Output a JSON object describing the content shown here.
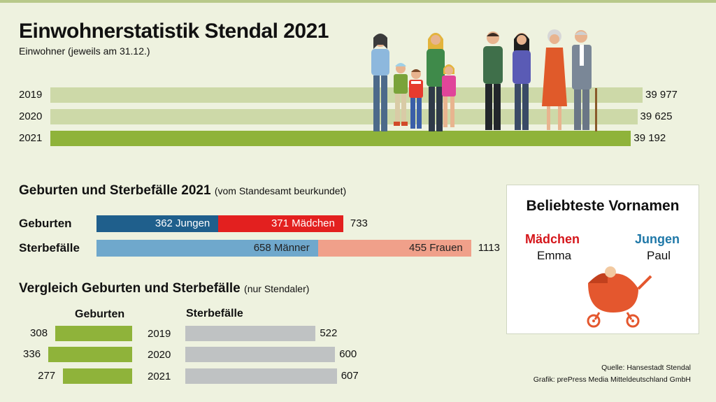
{
  "title": "Einwohnerstatistik Stendal 2021",
  "subtitle": "Einwohner (jeweils am 31.12.)",
  "births_deaths": {
    "title": "Geburten und Sterbefälle 2021",
    "note": "(vom Standesamt beurkundet)",
    "births_label": "Geburten",
    "deaths_label": "Sterbefälle",
    "boys_label": "362 Jungen",
    "girls_label": "371 Mädchen",
    "births_total_label": "733",
    "men_label": "658 Männer",
    "women_label": "455 Frauen",
    "deaths_total_label": "1113"
  },
  "comparison": {
    "title": "Vergleich Geburten und Sterbefälle",
    "note": "(nur Stendaler)",
    "births_header": "Geburten",
    "deaths_header": "Sterbefälle",
    "years": [
      "2019",
      "2020",
      "2021"
    ],
    "births": [
      "308",
      "336",
      "277"
    ],
    "deaths": [
      "522",
      "600",
      "607"
    ]
  },
  "names_card": {
    "title": "Beliebteste Vornamen",
    "girls_label": "Mädchen",
    "girls_name": "Emma",
    "boys_label": "Jungen",
    "boys_name": "Paul"
  },
  "source": {
    "line1": "Quelle: Hansestadt Stendal",
    "line2": "Grafik: prePress Media Mitteldeutschland GmbH"
  },
  "colors": {
    "population_bar_light": "#cdd9a8",
    "population_bar_dark": "#8fb33a",
    "boys": "#1f5f8c",
    "girls": "#e3201f",
    "men": "#6fa8cc",
    "women": "#f0a08a",
    "births_cmp": "#8fb33a",
    "deaths_cmp": "#bfc2c3",
    "card_girls": "#d5161b",
    "card_boys": "#1f78a8"
  },
  "chart_data": [
    {
      "type": "bar",
      "orientation": "horizontal",
      "categories": [
        "2019",
        "2020",
        "2021"
      ],
      "values": [
        39977,
        39625,
        39192
      ],
      "value_labels": [
        "39 977",
        "39 625",
        "39 192"
      ]
    },
    {
      "type": "bar",
      "orientation": "horizontal",
      "stacked": true,
      "categories": [
        "Geburten",
        "Sterbefälle"
      ],
      "series": [
        {
          "name": "Jungen",
          "values": [
            362,
            null
          ]
        },
        {
          "name": "Mädchen",
          "values": [
            371,
            null
          ]
        },
        {
          "name": "Männer",
          "values": [
            null,
            658
          ]
        },
        {
          "name": "Frauen",
          "values": [
            null,
            455
          ]
        }
      ],
      "totals": [
        733,
        1113
      ]
    },
    {
      "type": "bar",
      "orientation": "horizontal",
      "categories": [
        "2019",
        "2020",
        "2021"
      ],
      "series": [
        {
          "name": "Geburten",
          "values": [
            308,
            336,
            277
          ]
        },
        {
          "name": "Sterbefälle",
          "values": [
            522,
            600,
            607
          ]
        }
      ]
    }
  ]
}
